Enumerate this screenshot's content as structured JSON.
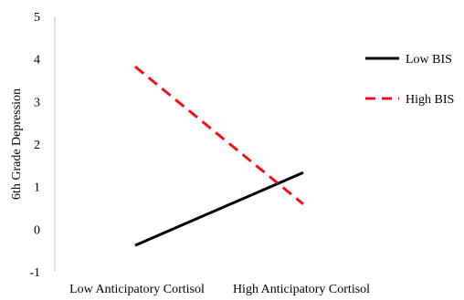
{
  "chart_data": {
    "type": "line",
    "title": "",
    "xlabel": "",
    "ylabel": "6th Grade Depression",
    "categories": [
      "Low Anticipatory Cortisol",
      "High Anticipatory Cortisol"
    ],
    "ylim": [
      -1,
      5
    ],
    "yticks": [
      "-1",
      "0",
      "1",
      "2",
      "3",
      "4",
      "5"
    ],
    "grid": false,
    "legend_position": "right",
    "series": [
      {
        "name": "Low BIS",
        "values": [
          -0.38,
          1.33
        ],
        "color": "#000000",
        "dash": "solid"
      },
      {
        "name": "High BIS",
        "values": [
          3.82,
          0.59
        ],
        "color": "#e8141b",
        "dash": "dashed"
      }
    ]
  }
}
